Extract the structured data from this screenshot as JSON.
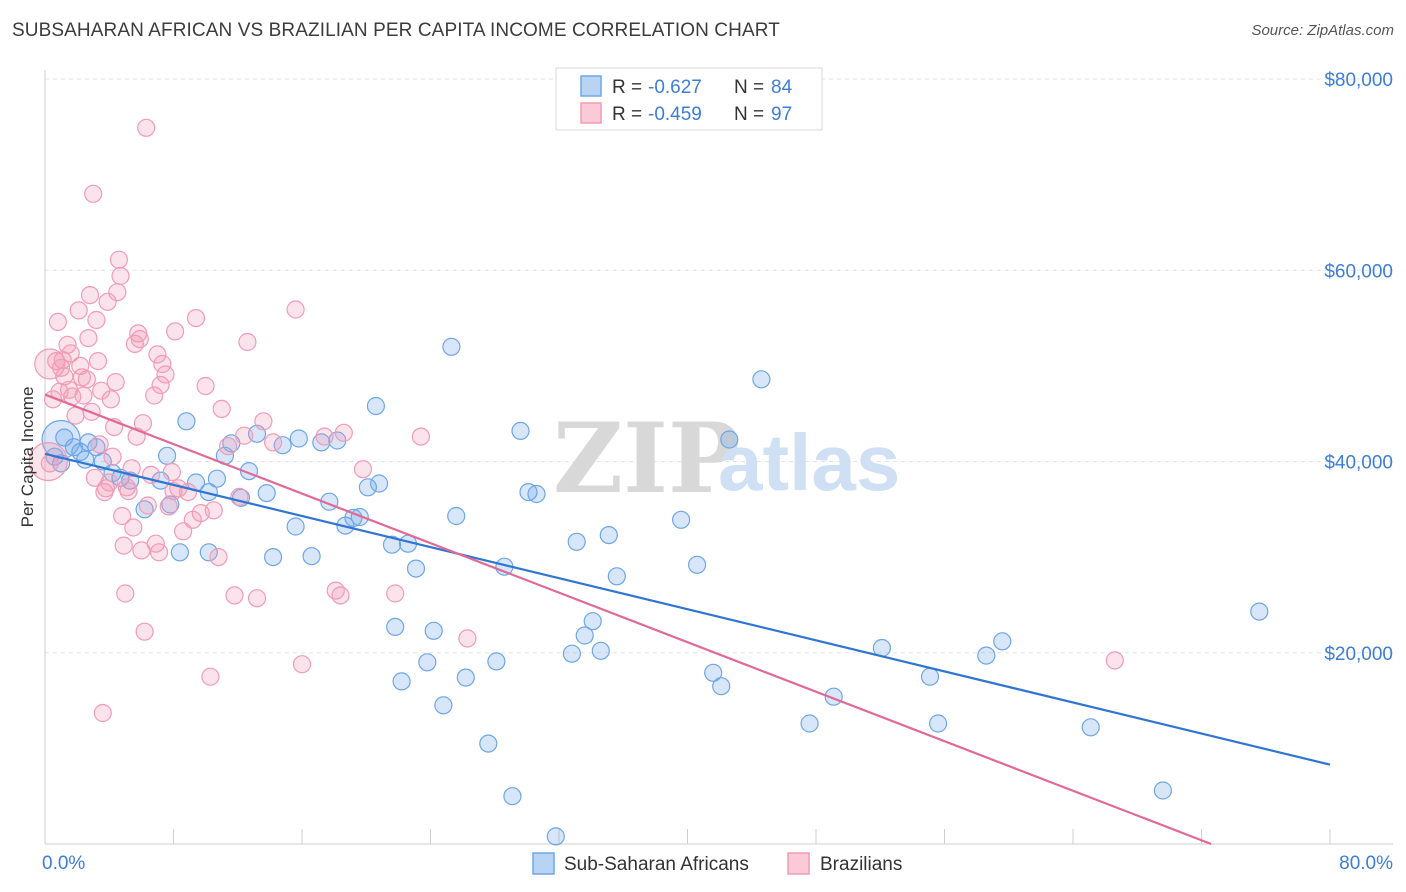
{
  "title": "SUBSAHARAN AFRICAN VS BRAZILIAN PER CAPITA INCOME CORRELATION CHART",
  "source": "Source: ZipAtlas.com",
  "colors": {
    "blue": "#6ea6e8",
    "blue_line": "#2f76d2",
    "pink": "#f29bb6",
    "pink_line": "#e06a95",
    "tick_text": "#3d7dd8"
  },
  "legend": {
    "rows": [
      {
        "r_label": "R =",
        "r_value": "-0.627",
        "n_label": "N =",
        "n_value": "84"
      },
      {
        "r_label": "R =",
        "r_value": "-0.459",
        "n_label": "N =",
        "n_value": "97"
      }
    ]
  },
  "watermark": {
    "zip": "ZIP",
    "atlas": "atlas"
  },
  "chart_data": {
    "type": "scatter",
    "title": "SUBSAHARAN AFRICAN VS BRAZILIAN PER CAPITA INCOME CORRELATION CHART",
    "xlabel": "",
    "ylabel": "Per Capita Income",
    "xlim": [
      0,
      80
    ],
    "ylim": [
      0,
      80000
    ],
    "x_tick_labels": [
      "0.0%",
      "80.0%"
    ],
    "y_ticks": [
      20000,
      40000,
      60000,
      80000
    ],
    "y_tick_labels": [
      "$20,000",
      "$40,000",
      "$60,000",
      "$80,000"
    ],
    "grid": true,
    "legend_position": "top-center",
    "series": [
      {
        "name": "Sub-Saharan Africans",
        "color": "#6ea6e8",
        "trend": {
          "x": [
            0,
            80
          ],
          "y": [
            40800,
            8300
          ]
        },
        "points": [
          [
            1.2,
            42500
          ],
          [
            1.8,
            41500
          ],
          [
            2.2,
            41000
          ],
          [
            2.7,
            42000
          ],
          [
            3.2,
            41500
          ],
          [
            3.6,
            40000
          ],
          [
            4.2,
            38800
          ],
          [
            4.7,
            38300
          ],
          [
            5.3,
            38000
          ],
          [
            6.2,
            35000
          ],
          [
            7.2,
            38000
          ],
          [
            7.6,
            40600
          ],
          [
            7.8,
            35500
          ],
          [
            8.4,
            30500
          ],
          [
            8.8,
            44200
          ],
          [
            9.4,
            37800
          ],
          [
            10.2,
            36800
          ],
          [
            10.2,
            30500
          ],
          [
            10.7,
            38200
          ],
          [
            11.2,
            40600
          ],
          [
            11.6,
            41900
          ],
          [
            12.2,
            36200
          ],
          [
            12.7,
            39000
          ],
          [
            13.2,
            42900
          ],
          [
            13.8,
            36700
          ],
          [
            14.2,
            30000
          ],
          [
            14.8,
            41700
          ],
          [
            15.6,
            33200
          ],
          [
            15.8,
            42400
          ],
          [
            16.6,
            30100
          ],
          [
            17.2,
            42000
          ],
          [
            17.7,
            35800
          ],
          [
            18.2,
            42200
          ],
          [
            18.7,
            33300
          ],
          [
            19.2,
            34100
          ],
          [
            19.6,
            34200
          ],
          [
            20.1,
            37300
          ],
          [
            20.6,
            45800
          ],
          [
            20.8,
            37700
          ],
          [
            21.6,
            31300
          ],
          [
            21.8,
            22700
          ],
          [
            22.2,
            17000
          ],
          [
            22.6,
            31400
          ],
          [
            23.1,
            28800
          ],
          [
            23.8,
            19000
          ],
          [
            24.2,
            22300
          ],
          [
            24.8,
            14500
          ],
          [
            25.3,
            52000
          ],
          [
            25.6,
            34300
          ],
          [
            26.2,
            17400
          ],
          [
            27.6,
            10500
          ],
          [
            28.1,
            19100
          ],
          [
            28.6,
            29000
          ],
          [
            29.1,
            5000
          ],
          [
            29.6,
            43200
          ],
          [
            30.1,
            36800
          ],
          [
            30.6,
            36600
          ],
          [
            31.8,
            800
          ],
          [
            32.8,
            19900
          ],
          [
            33.1,
            31600
          ],
          [
            33.6,
            21800
          ],
          [
            34.1,
            23300
          ],
          [
            34.6,
            20200
          ],
          [
            35.1,
            32300
          ],
          [
            35.6,
            28000
          ],
          [
            39.6,
            33900
          ],
          [
            40.6,
            29200
          ],
          [
            41.6,
            17900
          ],
          [
            42.1,
            16500
          ],
          [
            42.6,
            42300
          ],
          [
            44.6,
            48600
          ],
          [
            47.6,
            12600
          ],
          [
            49.1,
            15400
          ],
          [
            52.1,
            20500
          ],
          [
            55.1,
            17500
          ],
          [
            55.6,
            12600
          ],
          [
            58.6,
            19700
          ],
          [
            59.6,
            21200
          ],
          [
            65.1,
            12200
          ],
          [
            69.6,
            5600
          ],
          [
            75.6,
            24300
          ],
          [
            0.6,
            40500
          ],
          [
            1.0,
            39800
          ],
          [
            2.5,
            40200
          ]
        ]
      },
      {
        "name": "Brazilians",
        "color": "#f29bb6",
        "trend": {
          "x": [
            0,
            72.6
          ],
          "y": [
            47000,
            0
          ]
        },
        "points": [
          [
            0.3,
            39800
          ],
          [
            0.5,
            46500
          ],
          [
            0.7,
            50500
          ],
          [
            0.8,
            54600
          ],
          [
            1.0,
            49800
          ],
          [
            1.1,
            50600
          ],
          [
            1.2,
            48900
          ],
          [
            1.4,
            52200
          ],
          [
            1.5,
            47500
          ],
          [
            1.7,
            46800
          ],
          [
            1.9,
            44800
          ],
          [
            2.1,
            55800
          ],
          [
            2.2,
            50000
          ],
          [
            2.3,
            48800
          ],
          [
            2.6,
            48600
          ],
          [
            2.7,
            52900
          ],
          [
            2.8,
            57400
          ],
          [
            2.9,
            45200
          ],
          [
            3.1,
            38300
          ],
          [
            3.2,
            54800
          ],
          [
            3.3,
            50500
          ],
          [
            3.4,
            41800
          ],
          [
            3.5,
            47400
          ],
          [
            3.6,
            13700
          ],
          [
            3.7,
            36800
          ],
          [
            3.8,
            37200
          ],
          [
            3.9,
            56700
          ],
          [
            4.0,
            37800
          ],
          [
            4.1,
            46500
          ],
          [
            4.3,
            43600
          ],
          [
            4.4,
            48300
          ],
          [
            4.5,
            57700
          ],
          [
            4.6,
            61100
          ],
          [
            4.7,
            59400
          ],
          [
            4.8,
            34300
          ],
          [
            4.9,
            31200
          ],
          [
            5.0,
            26200
          ],
          [
            5.1,
            37300
          ],
          [
            5.2,
            36900
          ],
          [
            5.4,
            39300
          ],
          [
            5.5,
            33100
          ],
          [
            5.7,
            42600
          ],
          [
            5.8,
            53400
          ],
          [
            5.9,
            52800
          ],
          [
            6.0,
            30700
          ],
          [
            6.1,
            44000
          ],
          [
            6.2,
            22200
          ],
          [
            6.3,
            74900
          ],
          [
            6.4,
            35400
          ],
          [
            6.6,
            38600
          ],
          [
            6.8,
            46900
          ],
          [
            7.0,
            51200
          ],
          [
            7.1,
            30500
          ],
          [
            7.2,
            48000
          ],
          [
            7.3,
            50200
          ],
          [
            7.5,
            49100
          ],
          [
            7.7,
            35300
          ],
          [
            7.9,
            38900
          ],
          [
            8.0,
            36900
          ],
          [
            8.1,
            53600
          ],
          [
            8.3,
            37200
          ],
          [
            8.6,
            32700
          ],
          [
            8.9,
            36800
          ],
          [
            9.2,
            33900
          ],
          [
            9.4,
            55000
          ],
          [
            9.7,
            34600
          ],
          [
            10.0,
            47900
          ],
          [
            10.3,
            17500
          ],
          [
            10.5,
            34900
          ],
          [
            10.8,
            30000
          ],
          [
            11.0,
            45500
          ],
          [
            11.4,
            41600
          ],
          [
            11.8,
            26000
          ],
          [
            12.1,
            36300
          ],
          [
            12.4,
            42700
          ],
          [
            12.6,
            52500
          ],
          [
            13.2,
            25700
          ],
          [
            13.6,
            44200
          ],
          [
            14.2,
            42000
          ],
          [
            15.6,
            55900
          ],
          [
            16.0,
            18800
          ],
          [
            17.4,
            42600
          ],
          [
            18.1,
            26500
          ],
          [
            18.4,
            26000
          ],
          [
            18.6,
            43000
          ],
          [
            19.8,
            39200
          ],
          [
            21.8,
            26200
          ],
          [
            23.4,
            42600
          ],
          [
            26.3,
            21500
          ],
          [
            66.6,
            19200
          ],
          [
            3.0,
            68000
          ],
          [
            1.6,
            51300
          ],
          [
            2.4,
            46900
          ],
          [
            5.6,
            52300
          ],
          [
            0.9,
            47300
          ],
          [
            4.2,
            40500
          ],
          [
            6.9,
            31400
          ]
        ]
      }
    ]
  },
  "bottom_legend": [
    {
      "label": "Sub-Saharan Africans"
    },
    {
      "label": "Brazilians"
    }
  ]
}
